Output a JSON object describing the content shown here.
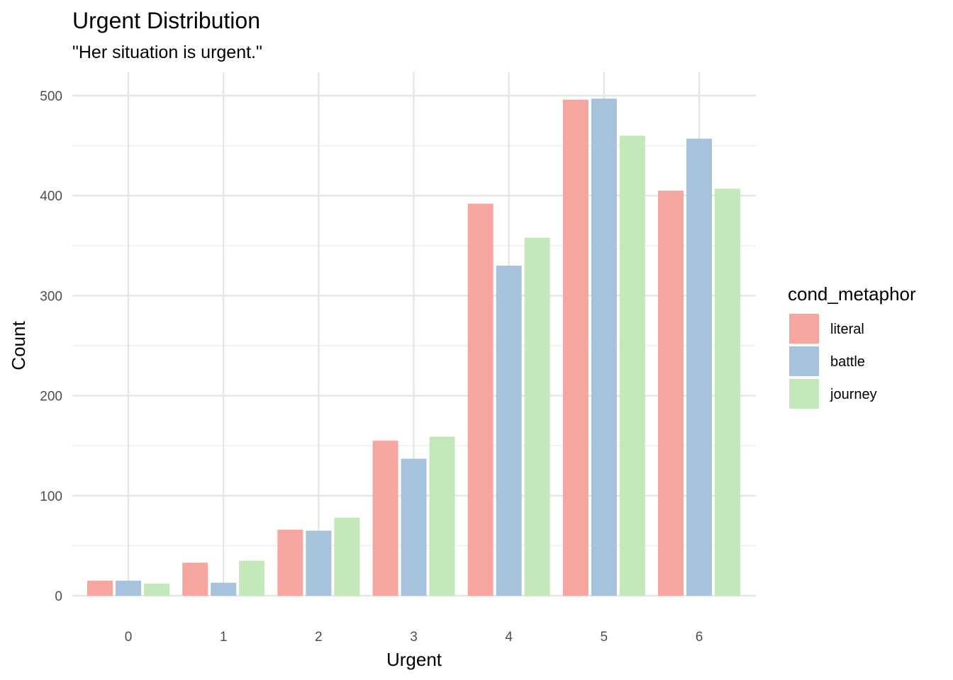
{
  "chart_data": {
    "type": "bar",
    "title": "Urgent Distribution",
    "subtitle": "\"Her situation is urgent.\"",
    "xlabel": "Urgent",
    "ylabel": "Count",
    "categories": [
      "0",
      "1",
      "2",
      "3",
      "4",
      "5",
      "6"
    ],
    "series": [
      {
        "name": "literal",
        "color": "#F7A59F",
        "values": [
          15,
          33,
          66,
          155,
          392,
          496,
          405
        ]
      },
      {
        "name": "battle",
        "color": "#A7C2DD",
        "values": [
          15,
          13,
          65,
          137,
          330,
          497,
          457
        ]
      },
      {
        "name": "journey",
        "color": "#C5E8BA",
        "values": [
          12,
          35,
          78,
          159,
          358,
          460,
          407
        ]
      }
    ],
    "ylim": [
      0,
      520
    ],
    "yticks": [
      0,
      100,
      200,
      300,
      400,
      500
    ],
    "grid": true,
    "legend": {
      "title": "cond_metaphor",
      "placement": "right"
    }
  }
}
